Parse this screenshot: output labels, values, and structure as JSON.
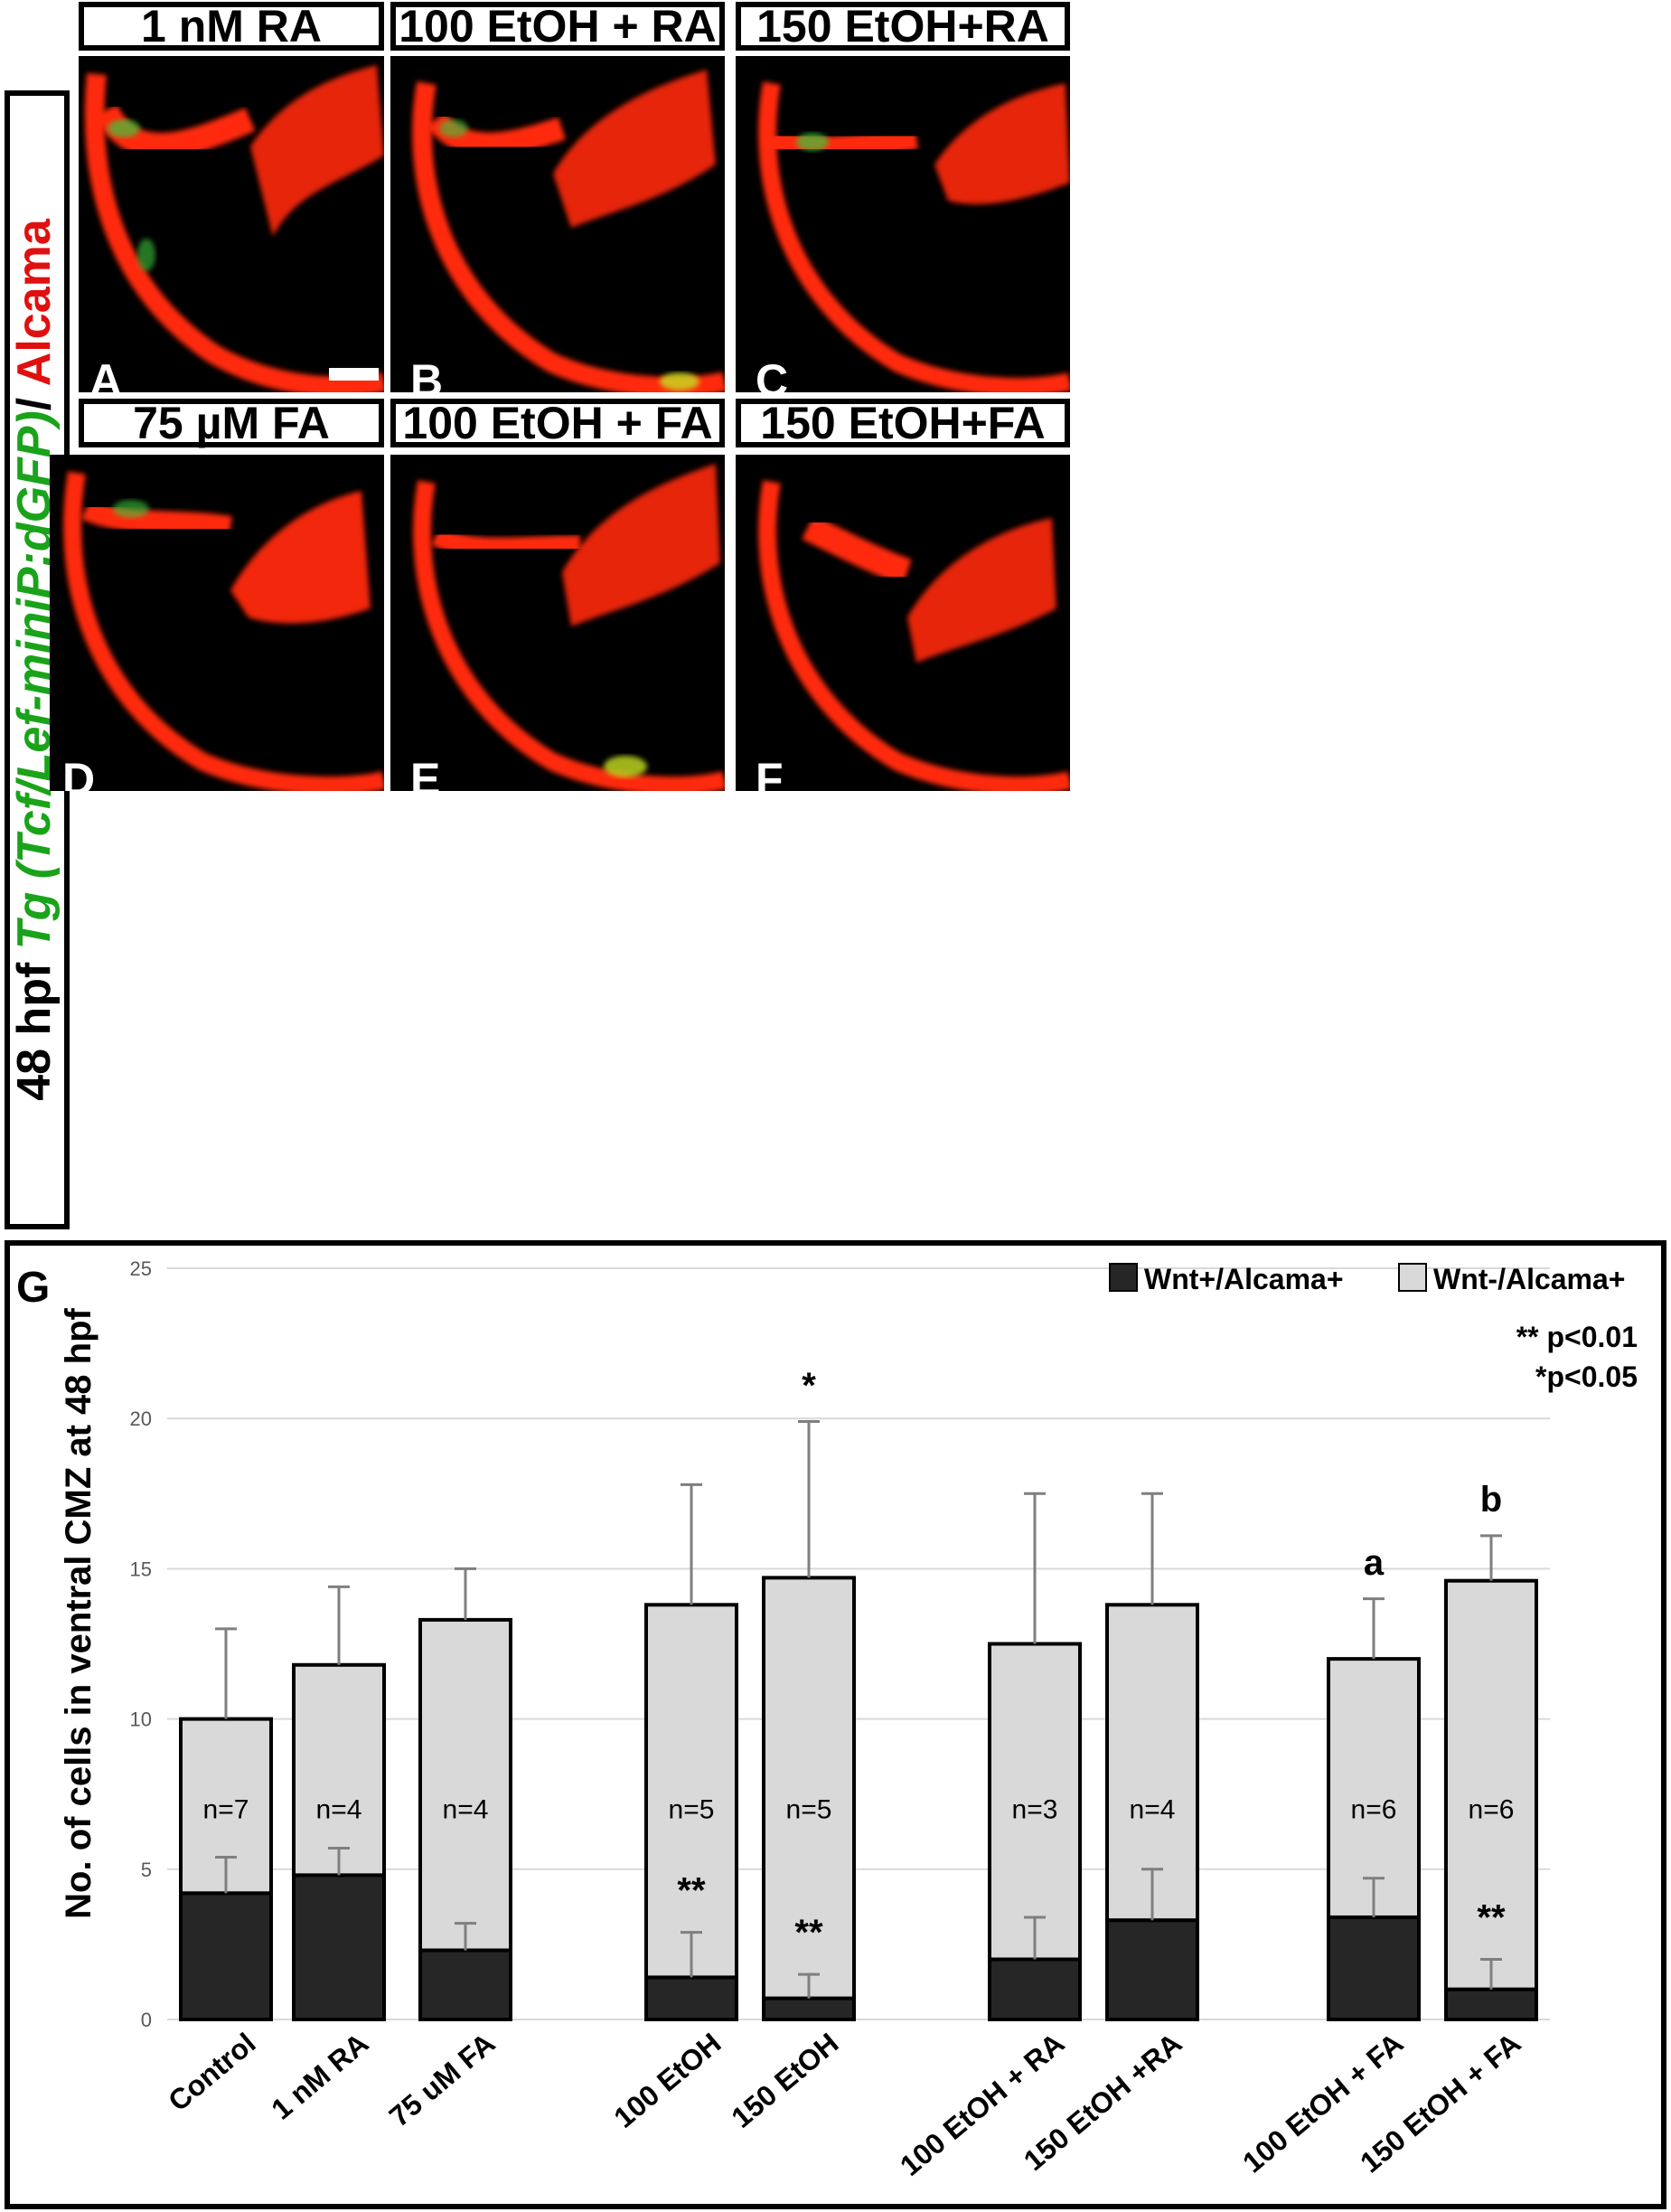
{
  "panel_headers": [
    "1 nM RA",
    "100 EtOH + RA",
    "150 EtOH+RA",
    "75 µM FA",
    "100 EtOH + FA",
    "150 EtOH+FA"
  ],
  "panel_letters": [
    "A",
    "B",
    "C",
    "D",
    "E",
    "F"
  ],
  "side_label": {
    "prefix": "48 hpf ",
    "transgene": "Tg (Tcf/Lef-miniP:dGFP)",
    "sep": "/ ",
    "marker": "Alcama"
  },
  "colors": {
    "alcama_red": "#ff2a10",
    "gfp_green": "#3cc83c",
    "bar_dark": "#262626",
    "bar_light": "#d9d9d9"
  },
  "chart_data": {
    "type": "bar",
    "stacked": true,
    "panel_label": "G",
    "ylabel": "No. of cells in ventral CMZ at 48 hpf",
    "ylim": [
      0,
      25
    ],
    "yticks": [
      0,
      5,
      10,
      15,
      20,
      25
    ],
    "grid": true,
    "legend_position": "top-right",
    "categories": [
      "Control",
      "1 nM RA",
      "75 uM FA",
      "100 EtOH",
      "150 EtOH",
      "100 EtOH + RA",
      "150 EtOH +RA",
      "100 EtOH + FA",
      "150 EtOH + FA"
    ],
    "series": [
      {
        "name": "Wnt+/Alcama+",
        "color": "#262626",
        "values": [
          4.2,
          4.8,
          2.3,
          1.4,
          0.7,
          2.0,
          3.3,
          3.4,
          1.0
        ],
        "error": [
          1.2,
          0.9,
          0.9,
          1.5,
          0.8,
          1.4,
          1.7,
          1.3,
          1.0
        ]
      },
      {
        "name": "Wnt-/Alcama+",
        "color": "#d9d9d9",
        "totals": [
          10.0,
          11.8,
          13.3,
          13.8,
          14.7,
          12.5,
          13.8,
          12.0,
          14.6
        ],
        "error": [
          3.0,
          2.6,
          1.7,
          4.0,
          5.2,
          5.0,
          3.7,
          2.0,
          1.5
        ]
      }
    ],
    "sample_sizes": [
      "n=7",
      "n=4",
      "n=4",
      "n=5",
      "n=5",
      "n=3",
      "n=4",
      "n=6",
      "n=6"
    ],
    "top_annotations": [
      "",
      "",
      "",
      "",
      "*",
      "",
      "",
      "a",
      "b"
    ],
    "inner_annotations": [
      "",
      "",
      "",
      "**",
      "**",
      "",
      "",
      "",
      "**"
    ],
    "significance_legend": [
      "** p<0.01",
      "*p<0.05"
    ]
  }
}
